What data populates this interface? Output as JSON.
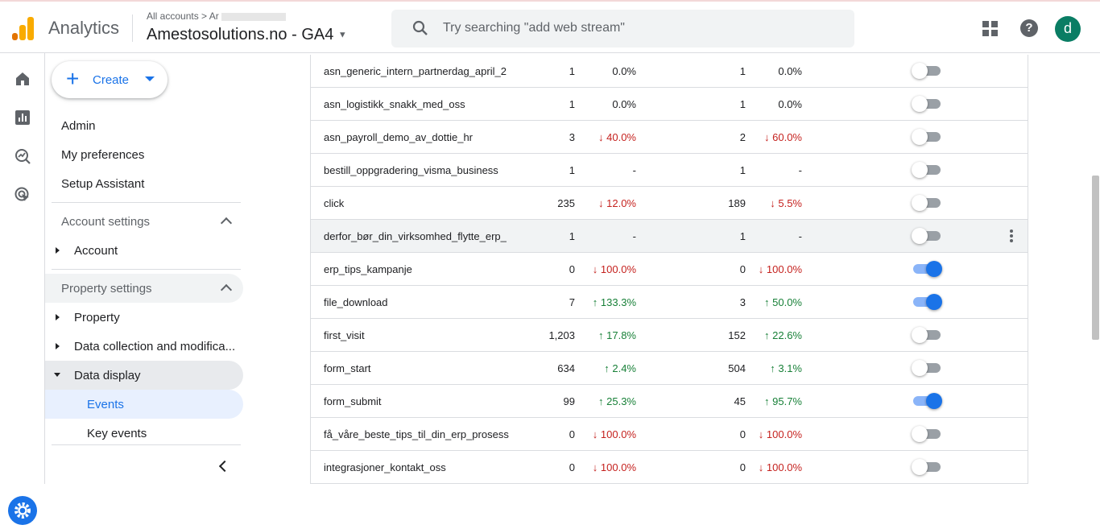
{
  "header": {
    "app_name": "Analytics",
    "breadcrumb": "All accounts > Ar",
    "property_name": "Amestosolutions.no - GA4",
    "search_placeholder": "Try searching \"add web stream\"",
    "avatar_letter": "d"
  },
  "colors": {
    "accent": "#1a73e8",
    "positive": "#188038",
    "negative": "#c5221f",
    "avatar": "#0a7d64"
  },
  "rail": {
    "icons": [
      "home-icon",
      "reports-icon",
      "explore-icon",
      "advertising-icon",
      "settings-icon"
    ]
  },
  "nav": {
    "create_label": "Create",
    "admin": "Admin",
    "preferences": "My preferences",
    "setup": "Setup Assistant",
    "account_settings": "Account settings",
    "account": "Account",
    "property_settings": "Property settings",
    "property": "Property",
    "data_collection": "Data collection and modifica...",
    "data_display": "Data display",
    "events": "Events",
    "key_events": "Key events"
  },
  "events": [
    {
      "name": "asn_generic_intern_partnerdag_april_2",
      "count": "1",
      "count_change": "0.0%",
      "count_dir": "flat",
      "users": "1",
      "users_change": "0.0%",
      "users_dir": "flat",
      "key_event": false
    },
    {
      "name": "asn_logistikk_snakk_med_oss",
      "count": "1",
      "count_change": "0.0%",
      "count_dir": "flat",
      "users": "1",
      "users_change": "0.0%",
      "users_dir": "flat",
      "key_event": false
    },
    {
      "name": "asn_payroll_demo_av_dottie_hr",
      "count": "3",
      "count_change": "40.0%",
      "count_dir": "down",
      "users": "2",
      "users_change": "60.0%",
      "users_dir": "down",
      "key_event": false
    },
    {
      "name": "bestill_oppgradering_visma_business",
      "count": "1",
      "count_change": "-",
      "count_dir": "flat",
      "users": "1",
      "users_change": "-",
      "users_dir": "flat",
      "key_event": false
    },
    {
      "name": "click",
      "count": "235",
      "count_change": "12.0%",
      "count_dir": "down",
      "users": "189",
      "users_change": "5.5%",
      "users_dir": "down",
      "key_event": false
    },
    {
      "name": "derfor_bør_din_virksomhed_flytte_erp_",
      "count": "1",
      "count_change": "-",
      "count_dir": "flat",
      "users": "1",
      "users_change": "-",
      "users_dir": "flat",
      "key_event": false
    },
    {
      "name": "erp_tips_kampanje",
      "count": "0",
      "count_change": "100.0%",
      "count_dir": "down",
      "users": "0",
      "users_change": "100.0%",
      "users_dir": "down",
      "key_event": true
    },
    {
      "name": "file_download",
      "count": "7",
      "count_change": "133.3%",
      "count_dir": "up",
      "users": "3",
      "users_change": "50.0%",
      "users_dir": "up",
      "key_event": true
    },
    {
      "name": "first_visit",
      "count": "1,203",
      "count_change": "17.8%",
      "count_dir": "up",
      "users": "152",
      "users_change": "22.6%",
      "users_dir": "up",
      "key_event": false
    },
    {
      "name": "form_start",
      "count": "634",
      "count_change": "2.4%",
      "count_dir": "up",
      "users": "504",
      "users_change": "3.1%",
      "users_dir": "up",
      "key_event": false
    },
    {
      "name": "form_submit",
      "count": "99",
      "count_change": "25.3%",
      "count_dir": "up",
      "users": "45",
      "users_change": "95.7%",
      "users_dir": "up",
      "key_event": true
    },
    {
      "name": "få_våre_beste_tips_til_din_erp_prosess",
      "count": "0",
      "count_change": "100.0%",
      "count_dir": "down",
      "users": "0",
      "users_change": "100.0%",
      "users_dir": "down",
      "key_event": false
    },
    {
      "name": "integrasjoner_kontakt_oss",
      "count": "0",
      "count_change": "100.0%",
      "count_dir": "down",
      "users": "0",
      "users_change": "100.0%",
      "users_dir": "down",
      "key_event": false
    }
  ]
}
